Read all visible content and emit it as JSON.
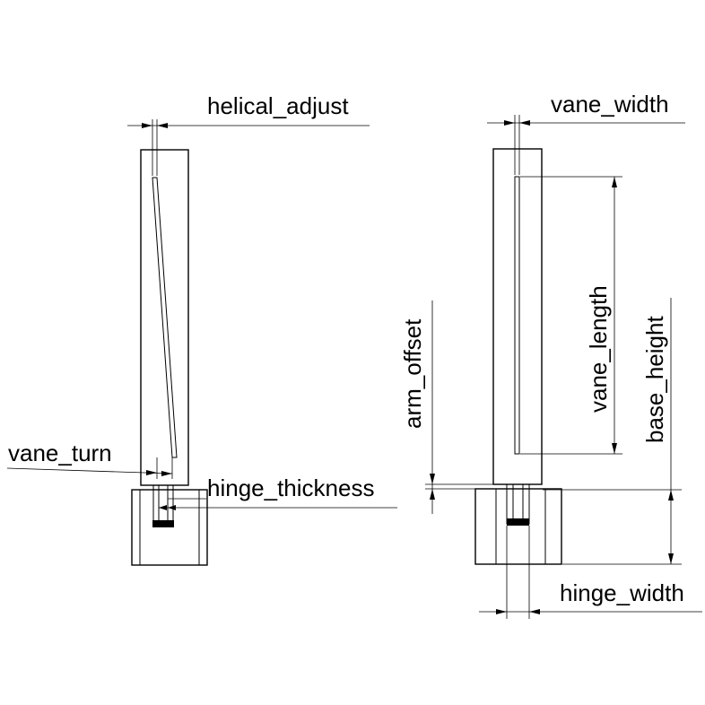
{
  "labels": {
    "helical_adjust": "helical_adjust",
    "vane_width": "vane_width",
    "vane_turn": "vane_turn",
    "hinge_thickness": "hinge_thickness",
    "arm_offset": "arm_offset",
    "vane_length": "vane_length",
    "base_height": "base_height",
    "hinge_width": "hinge_width"
  },
  "colors": {
    "line": "#000000",
    "background": "#ffffff"
  }
}
